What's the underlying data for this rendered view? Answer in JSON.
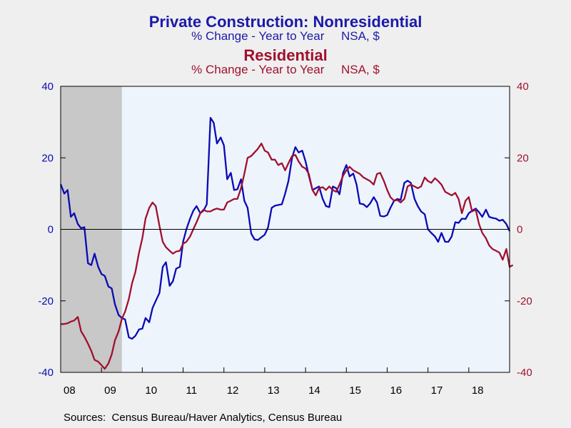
{
  "titles": {
    "primary": "Private Construction: Nonresidential",
    "primary_sub": "% Change - Year to Year     NSA, $",
    "secondary": "Residential",
    "secondary_sub": "% Change - Year to Year     NSA, $"
  },
  "source": "Sources:  Census Bureau/Haver Analytics, Census Bureau",
  "colors": {
    "nonresidential": "#0a0ab4",
    "residential": "#a0102e",
    "plot_bg": "#eef4fc",
    "recession": "#c8c8c8"
  },
  "chart_data": {
    "type": "line",
    "x_unit": "year",
    "xlim": [
      2008.0,
      2019.0
    ],
    "ylim_left": [
      -40,
      40
    ],
    "ylim_right": [
      -40,
      40
    ],
    "yticks_left": [
      "40",
      "20",
      "0",
      "-20",
      "-40"
    ],
    "yticks_right": [
      "40",
      "20",
      "0",
      "-20",
      "-40"
    ],
    "xtick_labels": [
      "08",
      "09",
      "10",
      "11",
      "12",
      "13",
      "14",
      "15",
      "16",
      "17",
      "18"
    ],
    "zero_line": true,
    "grid": false,
    "legend": "none",
    "shaded_region": {
      "label": "recession",
      "x": [
        2008.0,
        2009.5
      ]
    },
    "series": [
      {
        "name": "Nonresidential",
        "color": "#0a0ab4",
        "axis": "left",
        "points": [
          [
            2008.0,
            12.6
          ],
          [
            2008.09,
            10.0
          ],
          [
            2008.17,
            11.0
          ],
          [
            2008.25,
            3.5
          ],
          [
            2008.33,
            4.5
          ],
          [
            2008.42,
            1.5
          ],
          [
            2008.5,
            0.3
          ],
          [
            2008.58,
            0.6
          ],
          [
            2008.67,
            -9.5
          ],
          [
            2008.75,
            -10.0
          ],
          [
            2008.83,
            -6.8
          ],
          [
            2008.92,
            -10.5
          ],
          [
            2009.0,
            -12.5
          ],
          [
            2009.08,
            -13.0
          ],
          [
            2009.17,
            -16.0
          ],
          [
            2009.25,
            -16.5
          ],
          [
            2009.33,
            -21.0
          ],
          [
            2009.42,
            -24.0
          ],
          [
            2009.5,
            -24.8
          ],
          [
            2009.58,
            -25.2
          ],
          [
            2009.67,
            -30.2
          ],
          [
            2009.75,
            -30.6
          ],
          [
            2009.83,
            -29.8
          ],
          [
            2009.92,
            -28.0
          ],
          [
            2010.0,
            -27.8
          ],
          [
            2010.08,
            -24.8
          ],
          [
            2010.17,
            -26.0
          ],
          [
            2010.25,
            -22.0
          ],
          [
            2010.33,
            -20.0
          ],
          [
            2010.42,
            -17.8
          ],
          [
            2010.5,
            -10.5
          ],
          [
            2010.58,
            -9.2
          ],
          [
            2010.67,
            -15.8
          ],
          [
            2010.75,
            -14.5
          ],
          [
            2010.83,
            -11.0
          ],
          [
            2010.92,
            -10.5
          ],
          [
            2011.0,
            -3.5
          ],
          [
            2011.08,
            0.0
          ],
          [
            2011.17,
            3.0
          ],
          [
            2011.25,
            5.2
          ],
          [
            2011.33,
            6.5
          ],
          [
            2011.42,
            4.5
          ],
          [
            2011.5,
            5.2
          ],
          [
            2011.58,
            7.0
          ],
          [
            2011.67,
            31.2
          ],
          [
            2011.75,
            29.8
          ],
          [
            2011.83,
            24.0
          ],
          [
            2011.92,
            25.7
          ],
          [
            2012.0,
            23.5
          ],
          [
            2012.08,
            14.0
          ],
          [
            2012.17,
            15.8
          ],
          [
            2012.25,
            11.0
          ],
          [
            2012.33,
            11.2
          ],
          [
            2012.42,
            14.0
          ],
          [
            2012.5,
            8.0
          ],
          [
            2012.58,
            6.0
          ],
          [
            2012.67,
            -1.2
          ],
          [
            2012.75,
            -2.8
          ],
          [
            2012.83,
            -3.0
          ],
          [
            2012.92,
            -2.2
          ],
          [
            2013.0,
            -1.5
          ],
          [
            2013.08,
            0.5
          ],
          [
            2013.17,
            6.0
          ],
          [
            2013.25,
            6.6
          ],
          [
            2013.33,
            6.8
          ],
          [
            2013.42,
            7.0
          ],
          [
            2013.5,
            10.0
          ],
          [
            2013.58,
            13.5
          ],
          [
            2013.67,
            20.0
          ],
          [
            2013.75,
            23.0
          ],
          [
            2013.83,
            21.5
          ],
          [
            2013.92,
            22.0
          ],
          [
            2014.0,
            19.0
          ],
          [
            2014.08,
            15.0
          ],
          [
            2014.17,
            11.0
          ],
          [
            2014.25,
            11.5
          ],
          [
            2014.33,
            12.0
          ],
          [
            2014.42,
            8.5
          ],
          [
            2014.5,
            6.5
          ],
          [
            2014.58,
            6.2
          ],
          [
            2014.67,
            12.0
          ],
          [
            2014.75,
            11.5
          ],
          [
            2014.83,
            9.8
          ],
          [
            2014.92,
            15.8
          ],
          [
            2015.0,
            18.0
          ],
          [
            2015.08,
            14.8
          ],
          [
            2015.17,
            15.6
          ],
          [
            2015.25,
            12.5
          ],
          [
            2015.33,
            7.2
          ],
          [
            2015.42,
            7.0
          ],
          [
            2015.5,
            6.2
          ],
          [
            2015.58,
            7.2
          ],
          [
            2015.67,
            9.0
          ],
          [
            2015.75,
            7.5
          ],
          [
            2015.83,
            3.8
          ],
          [
            2015.92,
            3.6
          ],
          [
            2016.0,
            4.0
          ],
          [
            2016.08,
            6.0
          ],
          [
            2016.17,
            8.0
          ],
          [
            2016.25,
            8.5
          ],
          [
            2016.33,
            8.2
          ],
          [
            2016.42,
            13.0
          ],
          [
            2016.5,
            13.6
          ],
          [
            2016.58,
            13.0
          ],
          [
            2016.67,
            8.5
          ],
          [
            2016.75,
            6.5
          ],
          [
            2016.83,
            5.0
          ],
          [
            2016.92,
            4.2
          ],
          [
            2017.0,
            0.0
          ],
          [
            2017.08,
            -1.0
          ],
          [
            2017.17,
            -2.0
          ],
          [
            2017.25,
            -3.5
          ],
          [
            2017.33,
            -1.0
          ],
          [
            2017.42,
            -3.5
          ],
          [
            2017.5,
            -3.5
          ],
          [
            2017.58,
            -2.0
          ],
          [
            2017.67,
            2.0
          ],
          [
            2017.75,
            1.8
          ],
          [
            2017.83,
            3.0
          ],
          [
            2017.92,
            2.9
          ],
          [
            2018.0,
            4.5
          ],
          [
            2018.08,
            5.2
          ],
          [
            2018.17,
            5.8
          ],
          [
            2018.25,
            4.8
          ],
          [
            2018.33,
            3.5
          ],
          [
            2018.42,
            5.5
          ],
          [
            2018.5,
            3.5
          ],
          [
            2018.58,
            3.2
          ],
          [
            2018.67,
            3.0
          ],
          [
            2018.75,
            2.4
          ],
          [
            2018.83,
            2.7
          ],
          [
            2018.92,
            1.5
          ],
          [
            2019.0,
            -0.5
          ]
        ]
      },
      {
        "name": "Residential",
        "color": "#a0102e",
        "axis": "right",
        "points": [
          [
            2008.0,
            -26.5
          ],
          [
            2008.08,
            -26.5
          ],
          [
            2008.17,
            -26.3
          ],
          [
            2008.25,
            -25.8
          ],
          [
            2008.33,
            -25.5
          ],
          [
            2008.42,
            -24.5
          ],
          [
            2008.5,
            -28.5
          ],
          [
            2008.58,
            -30.0
          ],
          [
            2008.67,
            -32.0
          ],
          [
            2008.75,
            -34.0
          ],
          [
            2008.83,
            -36.5
          ],
          [
            2008.92,
            -37.0
          ],
          [
            2009.0,
            -38.0
          ],
          [
            2009.08,
            -39.0
          ],
          [
            2009.17,
            -37.5
          ],
          [
            2009.25,
            -35.0
          ],
          [
            2009.33,
            -31.0
          ],
          [
            2009.42,
            -28.5
          ],
          [
            2009.5,
            -25.0
          ],
          [
            2009.58,
            -23.0
          ],
          [
            2009.67,
            -19.5
          ],
          [
            2009.75,
            -15.0
          ],
          [
            2009.83,
            -12.0
          ],
          [
            2009.92,
            -6.5
          ],
          [
            2010.0,
            -2.5
          ],
          [
            2010.08,
            3.0
          ],
          [
            2010.17,
            6.0
          ],
          [
            2010.25,
            7.5
          ],
          [
            2010.33,
            6.5
          ],
          [
            2010.42,
            1.0
          ],
          [
            2010.5,
            -3.5
          ],
          [
            2010.58,
            -5.0
          ],
          [
            2010.67,
            -6.0
          ],
          [
            2010.75,
            -6.8
          ],
          [
            2010.83,
            -6.2
          ],
          [
            2010.92,
            -6.0
          ],
          [
            2011.0,
            -4.0
          ],
          [
            2011.08,
            -3.5
          ],
          [
            2011.17,
            -2.0
          ],
          [
            2011.25,
            0.0
          ],
          [
            2011.33,
            2.0
          ],
          [
            2011.42,
            4.5
          ],
          [
            2011.5,
            5.5
          ],
          [
            2011.58,
            5.0
          ],
          [
            2011.67,
            5.0
          ],
          [
            2011.75,
            5.5
          ],
          [
            2011.83,
            5.8
          ],
          [
            2011.92,
            5.5
          ],
          [
            2012.0,
            5.5
          ],
          [
            2012.08,
            7.5
          ],
          [
            2012.17,
            8.0
          ],
          [
            2012.25,
            8.5
          ],
          [
            2012.33,
            8.5
          ],
          [
            2012.42,
            11.5
          ],
          [
            2012.5,
            15.5
          ],
          [
            2012.58,
            20.0
          ],
          [
            2012.67,
            20.5
          ],
          [
            2012.75,
            21.5
          ],
          [
            2012.83,
            22.5
          ],
          [
            2012.92,
            24.0
          ],
          [
            2013.0,
            22.0
          ],
          [
            2013.08,
            21.5
          ],
          [
            2013.17,
            19.5
          ],
          [
            2013.25,
            19.5
          ],
          [
            2013.33,
            18.0
          ],
          [
            2013.42,
            18.5
          ],
          [
            2013.5,
            16.5
          ],
          [
            2013.58,
            18.5
          ],
          [
            2013.67,
            20.5
          ],
          [
            2013.75,
            20.8
          ],
          [
            2013.83,
            19.0
          ],
          [
            2013.92,
            17.5
          ],
          [
            2014.0,
            17.0
          ],
          [
            2014.08,
            15.5
          ],
          [
            2014.17,
            11.0
          ],
          [
            2014.25,
            9.5
          ],
          [
            2014.33,
            11.5
          ],
          [
            2014.42,
            11.8
          ],
          [
            2014.5,
            11.0
          ],
          [
            2014.58,
            12.0
          ],
          [
            2014.67,
            11.0
          ],
          [
            2014.75,
            10.5
          ],
          [
            2014.83,
            12.5
          ],
          [
            2014.92,
            15.0
          ],
          [
            2015.0,
            16.5
          ],
          [
            2015.08,
            17.5
          ],
          [
            2015.17,
            16.5
          ],
          [
            2015.25,
            16.0
          ],
          [
            2015.33,
            15.5
          ],
          [
            2015.42,
            14.5
          ],
          [
            2015.5,
            14.0
          ],
          [
            2015.58,
            13.5
          ],
          [
            2015.67,
            12.5
          ],
          [
            2015.75,
            15.5
          ],
          [
            2015.83,
            15.8
          ],
          [
            2015.92,
            13.5
          ],
          [
            2016.0,
            11.0
          ],
          [
            2016.08,
            9.0
          ],
          [
            2016.17,
            8.0
          ],
          [
            2016.25,
            8.2
          ],
          [
            2016.33,
            7.5
          ],
          [
            2016.42,
            8.5
          ],
          [
            2016.5,
            12.0
          ],
          [
            2016.58,
            12.5
          ],
          [
            2016.67,
            12.0
          ],
          [
            2016.75,
            11.5
          ],
          [
            2016.83,
            12.0
          ],
          [
            2016.92,
            14.5
          ],
          [
            2017.0,
            13.5
          ],
          [
            2017.08,
            13.0
          ],
          [
            2017.17,
            14.3
          ],
          [
            2017.25,
            13.5
          ],
          [
            2017.33,
            12.5
          ],
          [
            2017.42,
            10.5
          ],
          [
            2017.5,
            10.0
          ],
          [
            2017.58,
            9.5
          ],
          [
            2017.67,
            10.2
          ],
          [
            2017.75,
            8.5
          ],
          [
            2017.83,
            4.5
          ],
          [
            2017.92,
            8.0
          ],
          [
            2018.0,
            9.0
          ],
          [
            2018.08,
            5.0
          ],
          [
            2018.17,
            5.5
          ],
          [
            2018.25,
            1.5
          ],
          [
            2018.33,
            -1.0
          ],
          [
            2018.42,
            -2.5
          ],
          [
            2018.5,
            -4.5
          ],
          [
            2018.58,
            -5.5
          ],
          [
            2018.67,
            -6.0
          ],
          [
            2018.75,
            -6.5
          ],
          [
            2018.83,
            -8.5
          ],
          [
            2018.92,
            -5.5
          ],
          [
            2019.0,
            -10.5
          ],
          [
            2019.08,
            -10.0
          ]
        ]
      }
    ]
  }
}
